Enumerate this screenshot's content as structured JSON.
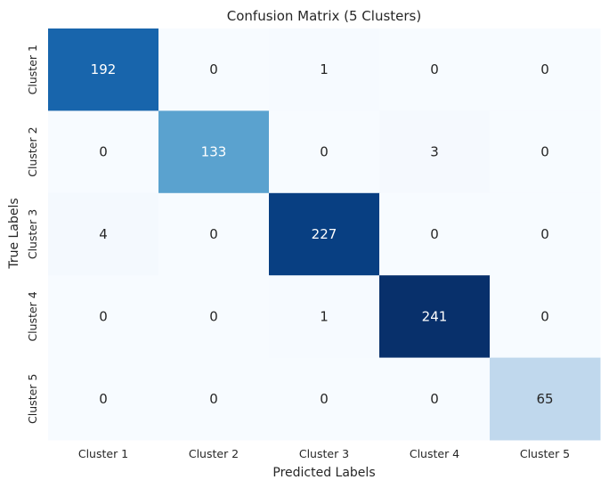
{
  "chart_data": {
    "type": "heatmap",
    "title": "Confusion Matrix (5 Clusters)",
    "xlabel": "Predicted Labels",
    "ylabel": "True Labels",
    "x_categories": [
      "Cluster 1",
      "Cluster 2",
      "Cluster 3",
      "Cluster 4",
      "Cluster 5"
    ],
    "y_categories": [
      "Cluster 1",
      "Cluster 2",
      "Cluster 3",
      "Cluster 4",
      "Cluster 5"
    ],
    "values": [
      [
        192,
        0,
        1,
        0,
        0
      ],
      [
        0,
        133,
        0,
        3,
        0
      ],
      [
        4,
        0,
        227,
        0,
        0
      ],
      [
        0,
        0,
        1,
        241,
        0
      ],
      [
        0,
        0,
        0,
        0,
        65
      ]
    ],
    "colormap": "Blues",
    "colorbar": false,
    "annotations": true
  }
}
